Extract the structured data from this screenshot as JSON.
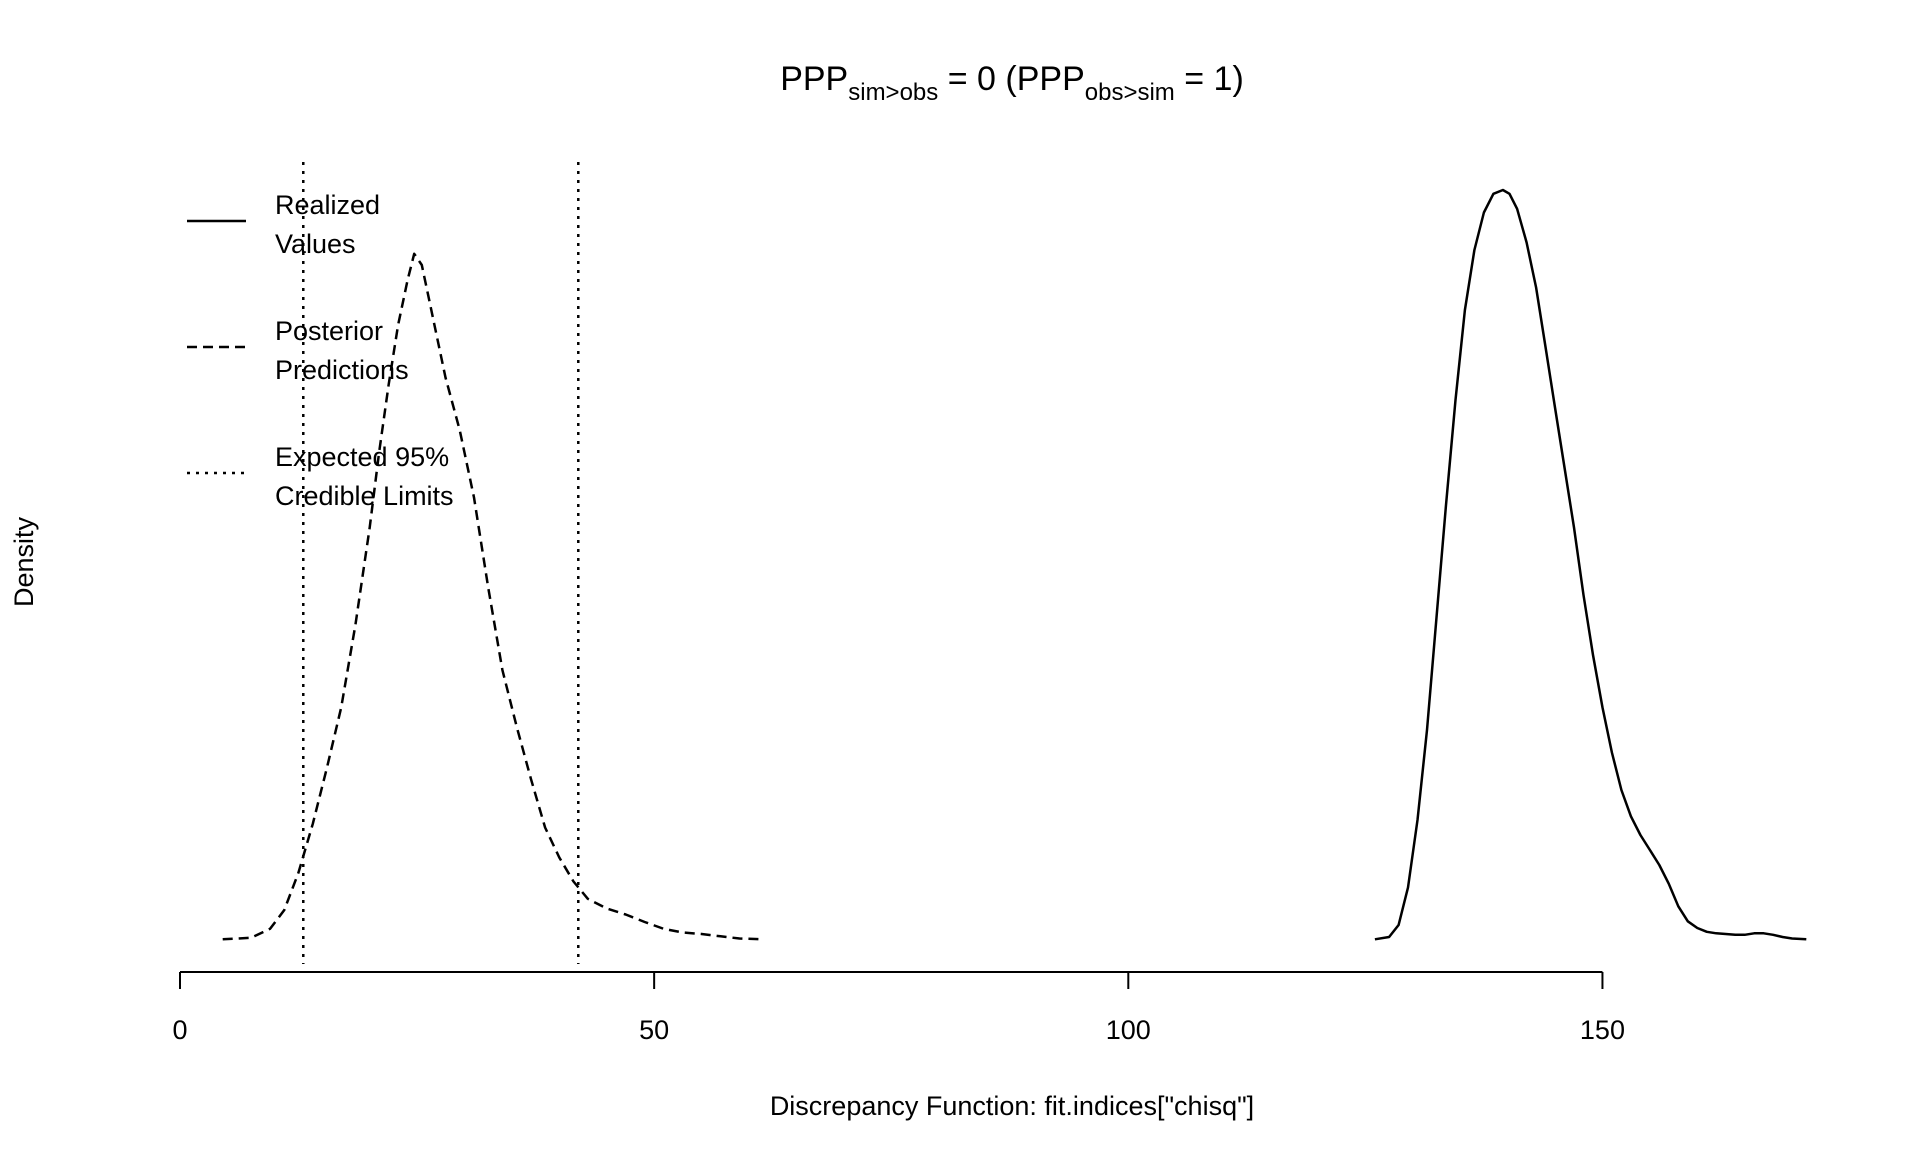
{
  "chart_data": {
    "type": "line",
    "title": {
      "prefix_1": "PPP",
      "sub_1": "sim>obs",
      "mid": " = 0 ",
      "open_paren": "(",
      "prefix_2": "PPP",
      "sub_2": "obs>sim",
      "end": " = 1",
      "close_paren": ")"
    },
    "xlabel": "Discrepancy Function: fit.indices[\"chisq\"]",
    "ylabel": "Density",
    "xlim": [
      0,
      150
    ],
    "x_ticks": [
      0,
      50,
      100,
      150
    ],
    "x_tick_labels": [
      "0",
      "50",
      "100",
      "150"
    ],
    "legend": {
      "position": "top-left",
      "entries": [
        {
          "line1": "Realized",
          "line2": "Values",
          "style": "solid"
        },
        {
          "line1": "Posterior",
          "line2": "Predictions",
          "style": "dashed"
        },
        {
          "line1": "Expected 95%",
          "line2": "Credible Limits",
          "style": "dotted"
        }
      ]
    },
    "credible_limits": [
      13,
      42
    ],
    "series": [
      {
        "style": "dashed",
        "x": [
          4.5,
          7.5,
          9.5,
          11,
          12.5,
          14,
          15.5,
          17,
          18.5,
          20,
          21,
          22,
          23,
          24,
          24.7,
          25.5,
          26.5,
          28,
          29.5,
          31,
          32.5,
          34,
          35.5,
          37,
          38.5,
          40,
          41.5,
          43,
          45,
          47,
          49,
          51,
          53,
          55,
          57,
          59,
          61.5
        ],
        "y": [
          0.001,
          0.003,
          0.015,
          0.04,
          0.09,
          0.155,
          0.23,
          0.31,
          0.42,
          0.55,
          0.65,
          0.74,
          0.82,
          0.88,
          0.915,
          0.9,
          0.84,
          0.75,
          0.68,
          0.59,
          0.47,
          0.36,
          0.285,
          0.215,
          0.15,
          0.11,
          0.078,
          0.055,
          0.042,
          0.034,
          0.024,
          0.015,
          0.01,
          0.008,
          0.005,
          0.002,
          0.001
        ]
      },
      {
        "style": "solid",
        "x": [
          126,
          127.5,
          128.5,
          129.5,
          130.5,
          131.5,
          132.5,
          133.5,
          134.5,
          135.5,
          136.5,
          137.5,
          138.5,
          139.5,
          140.2,
          141,
          142,
          143,
          144,
          145,
          146,
          147,
          148,
          149,
          150,
          151,
          152,
          153,
          154,
          155,
          156,
          157,
          158,
          159,
          160,
          161,
          162,
          163,
          164,
          165,
          166,
          167,
          168,
          169,
          170,
          171.5
        ],
        "y": [
          0.001,
          0.004,
          0.02,
          0.07,
          0.16,
          0.28,
          0.43,
          0.58,
          0.72,
          0.84,
          0.92,
          0.97,
          0.995,
          1.0,
          0.995,
          0.975,
          0.93,
          0.87,
          0.79,
          0.71,
          0.63,
          0.55,
          0.46,
          0.38,
          0.31,
          0.25,
          0.2,
          0.165,
          0.14,
          0.12,
          0.1,
          0.075,
          0.045,
          0.025,
          0.016,
          0.011,
          0.009,
          0.008,
          0.007,
          0.007,
          0.009,
          0.009,
          0.007,
          0.004,
          0.002,
          0.001
        ]
      }
    ]
  }
}
